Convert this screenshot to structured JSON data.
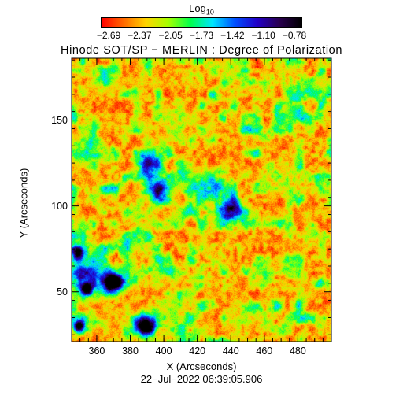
{
  "colorbar": {
    "label_main": "Log",
    "label_sub": "10",
    "ticks": [
      "−2.69",
      "−2.37",
      "−2.05",
      "−1.73",
      "−1.42",
      "−1.10",
      "−0.78"
    ]
  },
  "title": "Hinode SOT/SP − MERLIN : Degree of Polarization",
  "xlabel": "X (Arcseconds)",
  "ylabel": "Y (Arcseconds)",
  "datestamp": "22−Jul−2022 06:39:05.906",
  "chart_data": {
    "type": "heatmap",
    "title": "Hinode SOT/SP − MERLIN : Degree of Polarization",
    "xlabel": "X (Arcseconds)",
    "ylabel": "Y (Arcseconds)",
    "x_ticks": [
      360,
      380,
      400,
      420,
      440,
      460,
      480
    ],
    "y_ticks": [
      50,
      100,
      150
    ],
    "xlim": [
      345,
      500
    ],
    "ylim": [
      21,
      186
    ],
    "colorbar_range": [
      -2.69,
      -0.78
    ],
    "colormap": [
      "#ff0000",
      "#ff6a00",
      "#ffd400",
      "#a6ff00",
      "#00ff4c",
      "#00e5ff",
      "#0050ff",
      "#2200c8",
      "#2a0050",
      "#000000"
    ]
  }
}
